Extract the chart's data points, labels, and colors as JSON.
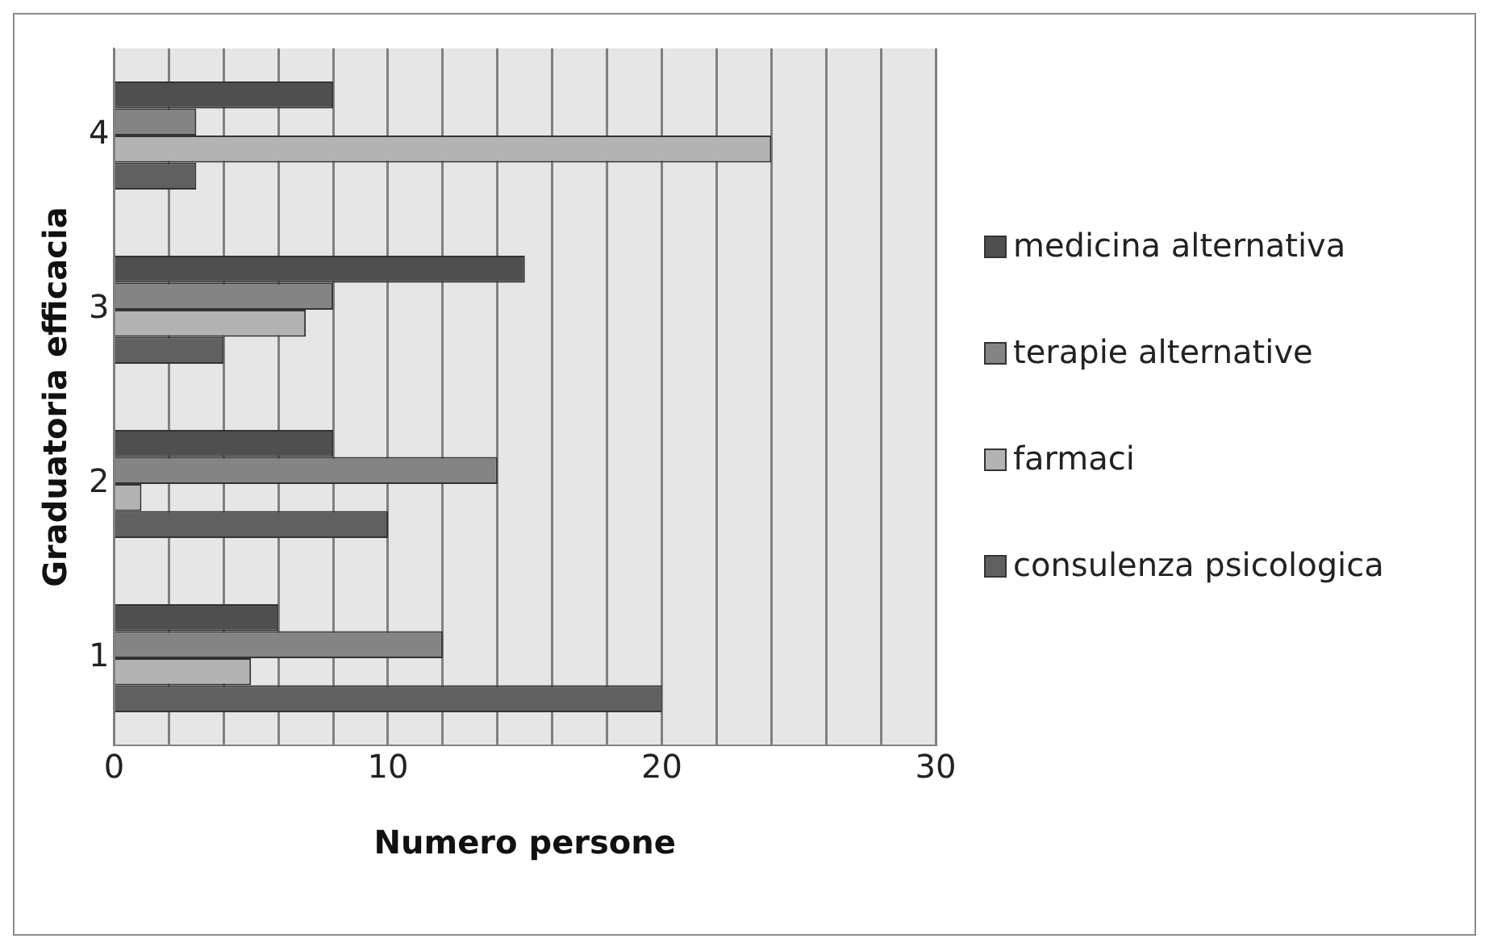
{
  "chart_data": {
    "type": "bar",
    "orientation": "horizontal",
    "xlabel": "Numero persone",
    "ylabel": "Graduatoria efficacia",
    "categories": [
      "4",
      "3",
      "2",
      "1"
    ],
    "series": [
      {
        "name": "medicina alternativa",
        "color": "#4f4f4f",
        "values": [
          8,
          15,
          8,
          6
        ]
      },
      {
        "name": "terapie alternative",
        "color": "#848484",
        "values": [
          3,
          8,
          14,
          12
        ]
      },
      {
        "name": "farmaci",
        "color": "#b3b3b3",
        "values": [
          24,
          7,
          1,
          5
        ]
      },
      {
        "name": "consulenza psicologica",
        "color": "#606060",
        "values": [
          3,
          4,
          10,
          20
        ]
      }
    ],
    "xlim": [
      0,
      30
    ],
    "xticks": [
      0,
      {
        "value": 2,
        "label": null
      },
      {
        "value": 4,
        "label": null
      },
      {
        "value": 6,
        "label": null
      },
      {
        "value": 8,
        "label": null
      },
      10,
      {
        "value": 12,
        "label": null
      },
      {
        "value": 14,
        "label": null
      },
      {
        "value": 16,
        "label": null
      },
      {
        "value": 18,
        "label": null
      },
      20,
      {
        "value": 22,
        "label": null
      },
      {
        "value": 24,
        "label": null
      },
      {
        "value": 26,
        "label": null
      },
      {
        "value": 28,
        "label": null
      },
      30
    ],
    "grid": "x",
    "legend": "right"
  }
}
